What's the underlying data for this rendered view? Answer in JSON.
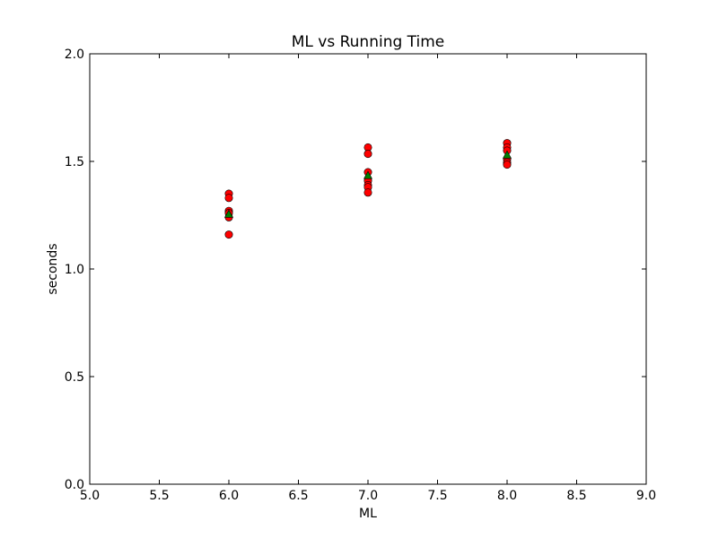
{
  "chart_data": {
    "type": "scatter",
    "title": "ML vs Running Time",
    "xlabel": "ML",
    "ylabel": "seconds",
    "xlim": [
      5.0,
      9.0
    ],
    "ylim": [
      0.0,
      2.0
    ],
    "xticks": [
      "5.0",
      "5.5",
      "6.0",
      "6.5",
      "7.0",
      "7.5",
      "8.0",
      "8.5",
      "9.0"
    ],
    "yticks": [
      "0.0",
      "0.5",
      "1.0",
      "1.5",
      "2.0"
    ],
    "grid": false,
    "series": [
      {
        "marker": "circle",
        "color": "#ff0000",
        "points": [
          {
            "x": 6.0,
            "y": 1.35
          },
          {
            "x": 6.0,
            "y": 1.33
          },
          {
            "x": 6.0,
            "y": 1.27
          },
          {
            "x": 6.0,
            "y": 1.26
          },
          {
            "x": 6.0,
            "y": 1.24
          },
          {
            "x": 6.0,
            "y": 1.16
          },
          {
            "x": 7.0,
            "y": 1.565
          },
          {
            "x": 7.0,
            "y": 1.535
          },
          {
            "x": 7.0,
            "y": 1.45
          },
          {
            "x": 7.0,
            "y": 1.41
          },
          {
            "x": 7.0,
            "y": 1.39
          },
          {
            "x": 7.0,
            "y": 1.38
          },
          {
            "x": 7.0,
            "y": 1.355
          },
          {
            "x": 8.0,
            "y": 1.585
          },
          {
            "x": 8.0,
            "y": 1.565
          },
          {
            "x": 8.0,
            "y": 1.55
          },
          {
            "x": 8.0,
            "y": 1.51
          },
          {
            "x": 8.0,
            "y": 1.495
          },
          {
            "x": 8.0,
            "y": 1.485
          }
        ]
      },
      {
        "marker": "triangle",
        "color": "#008000",
        "points": [
          {
            "x": 6.0,
            "y": 1.255
          },
          {
            "x": 7.0,
            "y": 1.435
          },
          {
            "x": 8.0,
            "y": 1.53
          }
        ]
      }
    ]
  }
}
